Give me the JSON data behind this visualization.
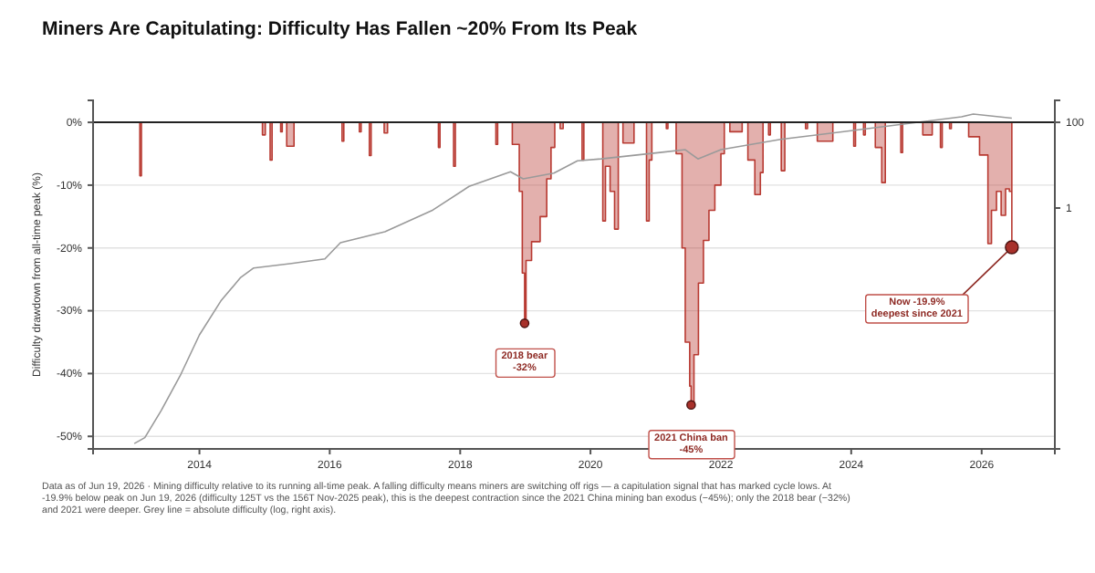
{
  "chart_data": {
    "type": "area",
    "title": "Miners Are Capitulating: Difficulty Has Fallen ~20% From Its Peak",
    "ylabel": "Difficulty drawdown from all-time peak (%)",
    "xlim": [
      "2012-05-15",
      "2027-02-15"
    ],
    "xticks": [
      {
        "value": "2014-01-01",
        "label": "2014"
      },
      {
        "value": "2016-01-01",
        "label": "2016"
      },
      {
        "value": "2018-01-01",
        "label": "2018"
      },
      {
        "value": "2020-01-01",
        "label": "2020"
      },
      {
        "value": "2022-01-01",
        "label": "2022"
      },
      {
        "value": "2024-01-01",
        "label": "2024"
      },
      {
        "value": "2026-01-01",
        "label": "2026"
      }
    ],
    "ylim": [
      -52,
      3.5
    ],
    "yticks": [
      {
        "value": 0,
        "label": "0%"
      },
      {
        "value": -10,
        "label": "-10%"
      },
      {
        "value": -20,
        "label": "-20%"
      },
      {
        "value": -30,
        "label": "-30%"
      },
      {
        "value": -40,
        "label": "-40%"
      },
      {
        "value": -50,
        "label": "-50%"
      }
    ],
    "y2lim": [
      2.4e-06,
      325
    ],
    "y2ticks": [
      100,
      1
    ],
    "log": "y2",
    "grid": "y",
    "ref_lines": [
      {
        "axis": "y",
        "value": 0,
        "color": "#222222"
      }
    ],
    "annotations": [
      {
        "text": "2018 bear\n-32%",
        "x": "2018-12-28",
        "y": -32
      },
      {
        "text": "2021 China ban\n-45%",
        "x": "2021-07-18",
        "y": -45
      },
      {
        "text": "Now -19.9%\ndeepest since 2021",
        "x": "2026-06-19",
        "y": -19.9
      },
      "Data as of Jun 19, 2026 · Mining difficulty relative to its running all-time peak. A falling difficulty means miners are switching off rigs — a capitulation signal that has marked cycle lows. At -19.9% below peak on Jun 19, 2026 (difficulty 125T vs the 156T Nov-2025 peak), this is the deepest contraction since the 2021 China mining ban exodus (−45%); only the 2018 bear (−32%) and 2021 were deeper. Grey line = absolute difficulty (log, right axis)."
    ],
    "series": [
      {
        "color": "#b83a32",
        "x": [
          "2013-01-01",
          "2013-02-01",
          "2013-02-10",
          "2014-12-20",
          "2015-01-05",
          "2015-02-01",
          "2015-02-12",
          "2015-04-01",
          "2015-04-10",
          "2015-05-05",
          "2015-06-15",
          "2016-03-10",
          "2016-03-20",
          "2016-06-15",
          "2016-06-25",
          "2016-08-10",
          "2016-08-20",
          "2016-11-01",
          "2016-11-20",
          "2017-09-01",
          "2017-09-10",
          "2017-11-25",
          "2017-12-05",
          "2018-07-20",
          "2018-07-30",
          "2018-10-20",
          "2018-11-28",
          "2018-12-15",
          "2018-12-28",
          "2019-01-05",
          "2019-02-05",
          "2019-03-25",
          "2019-05-01",
          "2019-05-25",
          "2019-06-15",
          "2019-07-15",
          "2019-08-01",
          "2019-11-15",
          "2019-11-25",
          "2020-03-10",
          "2020-03-25",
          "2020-04-20",
          "2020-05-15",
          "2020-06-05",
          "2020-06-15",
          "2020-07-01",
          "2020-09-01",
          "2020-11-10",
          "2020-11-25",
          "2020-12-10",
          "2021-03-01",
          "2021-03-10",
          "2021-04-25",
          "2021-05-28",
          "2021-06-15",
          "2021-07-10",
          "2021-07-18",
          "2021-08-03",
          "2021-08-28",
          "2021-09-25",
          "2021-10-26",
          "2021-11-28",
          "2022-01-01",
          "2022-01-20",
          "2022-02-20",
          "2022-04-30",
          "2022-06-01",
          "2022-07-10",
          "2022-08-10",
          "2022-08-25",
          "2022-09-25",
          "2022-10-05",
          "2022-12-05",
          "2022-12-25",
          "2023-04-20",
          "2023-05-01",
          "2023-06-25",
          "2023-09-20",
          "2024-01-15",
          "2024-01-25",
          "2024-03-10",
          "2024-03-20",
          "2024-05-15",
          "2024-06-20",
          "2024-07-10",
          "2024-10-05",
          "2024-10-15",
          "2025-02-05",
          "2025-03-30",
          "2025-05-15",
          "2025-05-25",
          "2025-07-05",
          "2025-07-15",
          "2025-10-20",
          "2025-12-20",
          "2026-02-05",
          "2026-02-25",
          "2026-03-25",
          "2026-04-20",
          "2026-05-15",
          "2026-06-05",
          "2026-06-19"
        ],
        "values": [
          0,
          -8.5,
          0,
          -2,
          0,
          -6,
          0,
          -1.5,
          0,
          -3.8,
          0,
          -3,
          0,
          -1.5,
          0,
          -5.3,
          0,
          -1.7,
          0,
          -4,
          0,
          -7,
          0,
          -3.5,
          0,
          -3.5,
          -11,
          -24,
          -32,
          -22,
          -19,
          -15,
          -9,
          -4,
          0,
          -1,
          0,
          -6,
          0,
          -15.7,
          -7,
          -11,
          -17,
          0,
          0,
          -3.3,
          0,
          -15.7,
          -6,
          0,
          -1,
          0,
          -5,
          -20,
          -35,
          -42,
          -45,
          -37,
          -25.6,
          -18.8,
          -14,
          -10,
          -5,
          0,
          -1.5,
          0,
          -6,
          -11.5,
          -8,
          0,
          -2,
          0,
          -7.7,
          0,
          -1,
          0,
          -3,
          0,
          -3.8,
          0,
          -2,
          0,
          -4,
          -9.6,
          0,
          -4.8,
          0,
          -2,
          0,
          -4,
          0,
          -1,
          0,
          -2.3,
          -5.2,
          -19.3,
          -14,
          -11,
          -14.8,
          -10.6,
          -11,
          -19.9
        ]
      },
      {
        "type": "line",
        "axis": "y2",
        "color": "#9a9a9a",
        "x": [
          "2013-01-01",
          "2013-03-01",
          "2013-06-01",
          "2013-09-20",
          "2014-01-01",
          "2014-05-01",
          "2014-08-20",
          "2014-11-01",
          "2015-06-01",
          "2015-12-05",
          "2016-03-01",
          "2016-11-05",
          "2017-08-01",
          "2018-02-20",
          "2018-10-10",
          "2018-12-20",
          "2019-06-10",
          "2019-10-20",
          "2020-03-01",
          "2021-02-05",
          "2021-06-15",
          "2021-08-25",
          "2022-01-01",
          "2022-12-01",
          "2023-11-10",
          "2024-10-10",
          "2025-09-10",
          "2025-11-15",
          "2026-06-19"
        ],
        "values": [
          3.2e-06,
          4.4e-06,
          1.9e-05,
          0.000135,
          0.0011,
          0.0068,
          0.024,
          0.04,
          0.051,
          0.065,
          0.155,
          0.28,
          0.9,
          3.2,
          7,
          4.8,
          6.5,
          12.6,
          14,
          20,
          23,
          14,
          23,
          40,
          60,
          90,
          135,
          156,
          125
        ]
      }
    ]
  }
}
